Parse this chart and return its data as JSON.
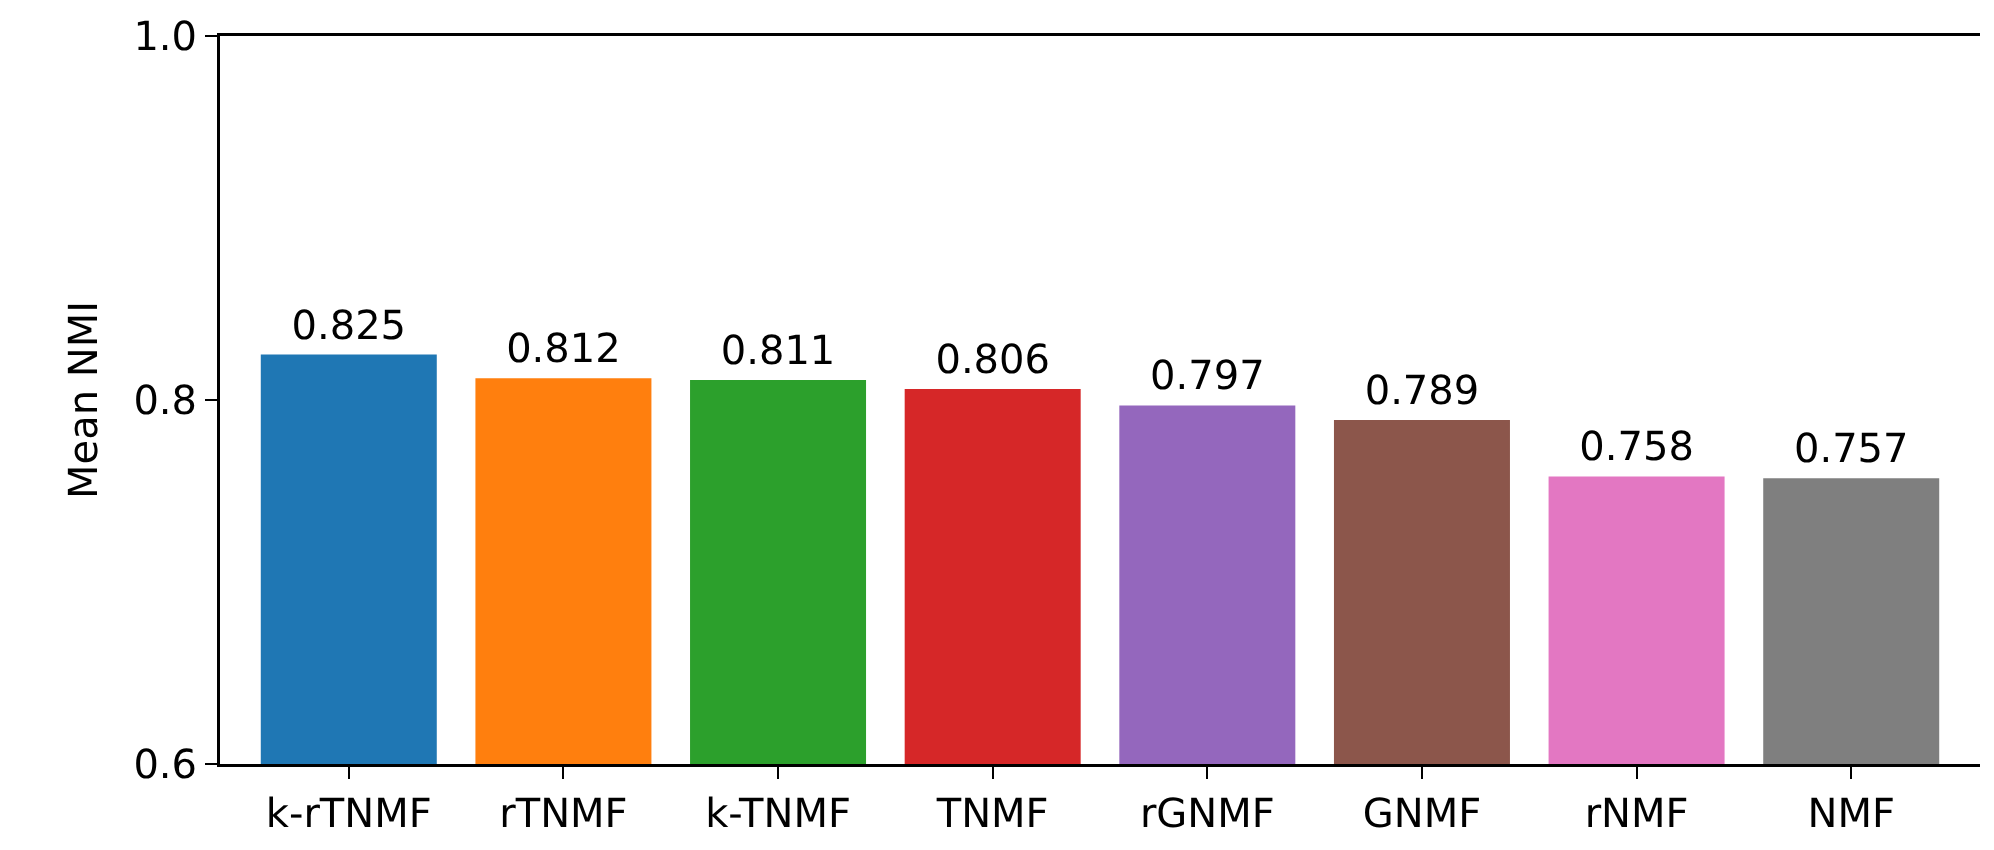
{
  "chart_data": {
    "type": "bar",
    "ylabel": "Mean NMI",
    "categories": [
      "k-rTNMF",
      "rTNMF",
      "k-TNMF",
      "TNMF",
      "rGNMF",
      "GNMF",
      "rNMF",
      "NMF"
    ],
    "values": [
      0.825,
      0.812,
      0.811,
      0.806,
      0.797,
      0.789,
      0.758,
      0.757
    ],
    "colors": [
      "#1f77b4",
      "#ff7f0e",
      "#2ca02c",
      "#d62728",
      "#9467bd",
      "#8c564b",
      "#e377c2",
      "#7f7f7f"
    ],
    "ylim": [
      0.6,
      1.0
    ],
    "yticks": [
      {
        "value": 0.6,
        "label": "0.6"
      },
      {
        "value": 0.8,
        "label": "0.8"
      },
      {
        "value": 1.0,
        "label": "1.0"
      }
    ],
    "data_labels": true
  }
}
